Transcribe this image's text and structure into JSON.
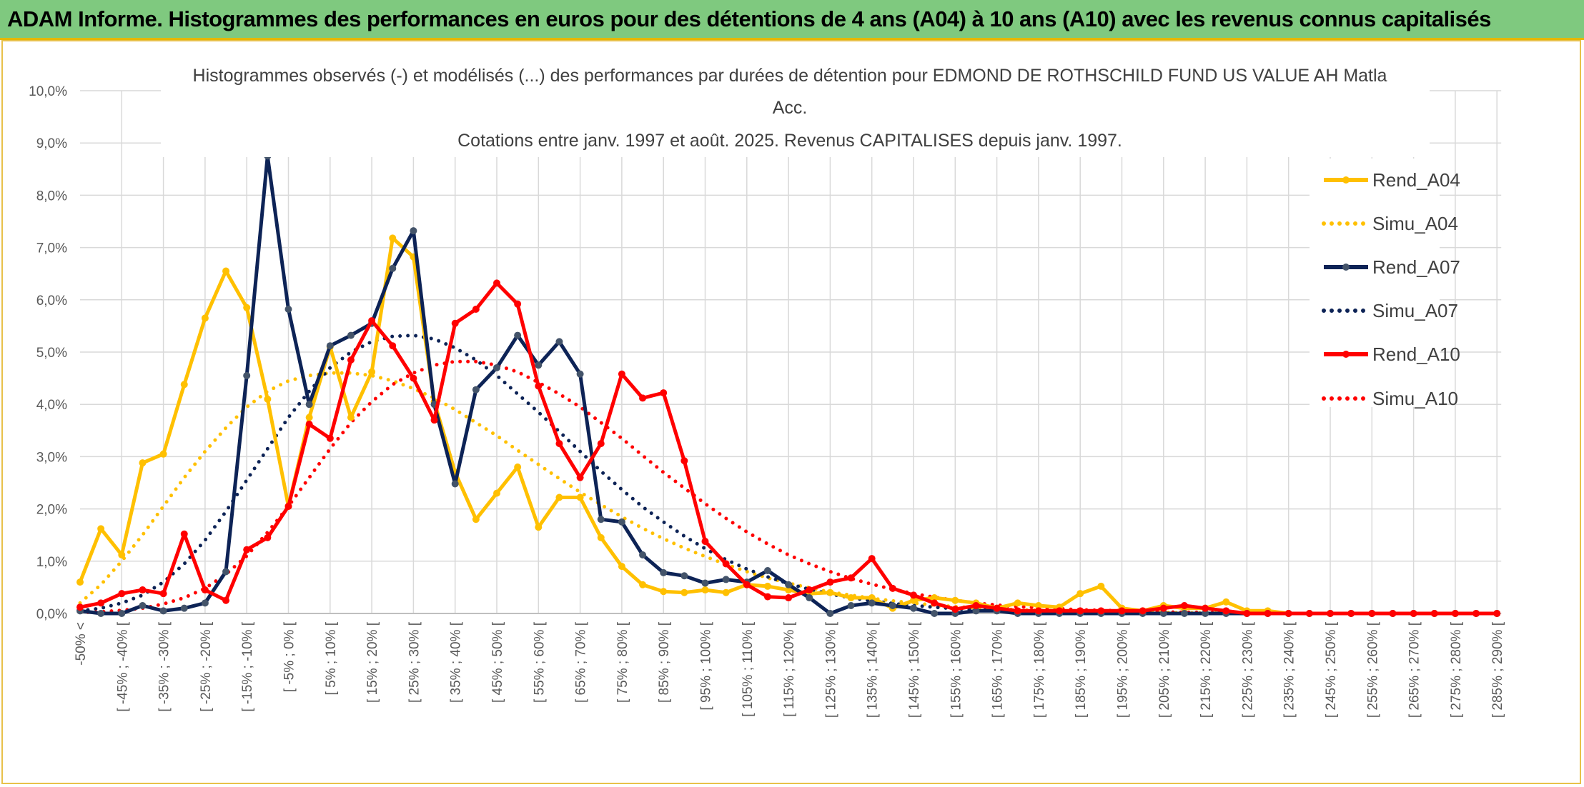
{
  "header": {
    "title": "ADAM Informe. Histogrammes des performances en euros pour des détentions de 4 ans (A04) à 10 ans (A10) avec les revenus connus capitalisés"
  },
  "colors": {
    "header_bg": "#7fc97f",
    "A04": "#ffc000",
    "A07": "#0d2356",
    "A10": "#ff0000"
  },
  "chart_data": {
    "type": "line",
    "title_lines": [
      "Histogrammes observés (-) et modélisés (...) des performances par durées de détention pour EDMOND DE ROTHSCHILD FUND US VALUE AH Matla",
      "Acc.",
      "Cotations entre janv. 1997 et août. 2025. Revenus CAPITALISES depuis janv. 1997."
    ],
    "ylim": [
      0,
      10
    ],
    "yticks": [
      "0,0%",
      "1,0%",
      "2,0%",
      "3,0%",
      "4,0%",
      "5,0%",
      "6,0%",
      "7,0%",
      "8,0%",
      "9,0%",
      "10,0%"
    ],
    "grid": true,
    "legend_position": "right",
    "n_points": 69,
    "x_tick_labels": [
      "-50% <",
      "[ -45% ; -40% [",
      "[ -35% ; -30% [",
      "[ -25% ; -20% [",
      "[ -15% ; -10% [",
      "[ -5% ; 0% [",
      "[ 5% ; 10% [",
      "[ 15% ; 20% [",
      "[ 25% ; 30% [",
      "[ 35% ; 40% [",
      "[ 45% ; 50% [",
      "[ 55% ; 60% [",
      "[ 65% ; 70% [",
      "[ 75% ; 80% [",
      "[ 85% ; 90% [",
      "[ 95% ; 100% [",
      "[ 105% ; 110% [",
      "[ 115% ; 120% [",
      "[ 125% ; 130% [",
      "[ 135% ; 140% [",
      "[ 145% ; 150% [",
      "[ 155% ; 160% [",
      "[ 165% ; 170% [",
      "[ 175% ; 180% [",
      "[ 185% ; 190% [",
      "[ 195% ; 200% [",
      "[ 205% ; 210% [",
      "[ 215% ; 220% [",
      "[ 225% ; 230% [",
      "[ 235% ; 240% [",
      "[ 245% ; 250% [",
      "[ 255% ; 260% [",
      "[ 265% ; 270% [",
      "[ 275% ; 280% [",
      "[ 285% ; 290% ["
    ],
    "series": [
      {
        "name": "Rend_A04",
        "style": "solid",
        "color": "#ffc000",
        "values": [
          0.6,
          1.62,
          1.12,
          2.88,
          3.05,
          4.38,
          5.65,
          6.55,
          5.85,
          4.1,
          2.05,
          3.75,
          5.1,
          3.75,
          4.62,
          7.18,
          6.82,
          4.05,
          2.7,
          1.8,
          2.3,
          2.8,
          1.65,
          2.22,
          2.22,
          1.45,
          0.9,
          0.55,
          0.42,
          0.4,
          0.45,
          0.4,
          0.55,
          0.52,
          0.45,
          0.38,
          0.4,
          0.3,
          0.3,
          0.1,
          0.25,
          0.3,
          0.25,
          0.2,
          0.1,
          0.2,
          0.15,
          0.12,
          0.38,
          0.52,
          0.1,
          0.05,
          0.15,
          0.1,
          0.1,
          0.22,
          0.05,
          0.05,
          0.0,
          0.0,
          0.0,
          0.0,
          0.0,
          0.0,
          0.0,
          0.0,
          0.0,
          0.0,
          0.0
        ]
      },
      {
        "name": "Simu_A04",
        "style": "dotted",
        "color": "#ffc000",
        "values": [
          0.2,
          0.55,
          1.0,
          1.5,
          2.05,
          2.6,
          3.1,
          3.55,
          3.95,
          4.25,
          4.45,
          4.55,
          4.6,
          4.6,
          4.55,
          4.45,
          4.3,
          4.12,
          3.9,
          3.65,
          3.4,
          3.12,
          2.85,
          2.58,
          2.32,
          2.08,
          1.85,
          1.63,
          1.43,
          1.25,
          1.09,
          0.94,
          0.8,
          0.68,
          0.58,
          0.49,
          0.41,
          0.35,
          0.29,
          0.24,
          0.2,
          0.16,
          0.13,
          0.11,
          0.09,
          0.07,
          0.06,
          0.05,
          0.04,
          0.03,
          0.03,
          0.02,
          0.02,
          0.01,
          0.01,
          0.01,
          0.01,
          0.0,
          0.0,
          0.0,
          0.0,
          0.0,
          0.0,
          0.0,
          0.0,
          0.0,
          0.0,
          0.0,
          0.0
        ]
      },
      {
        "name": "Rend_A07",
        "style": "solid",
        "color": "#0d2356",
        "values": [
          0.05,
          0.0,
          0.0,
          0.15,
          0.05,
          0.1,
          0.2,
          0.8,
          4.55,
          8.75,
          5.82,
          4.0,
          5.12,
          5.32,
          5.55,
          6.6,
          7.32,
          4.0,
          2.48,
          4.28,
          4.7,
          5.32,
          4.75,
          5.2,
          4.58,
          1.8,
          1.75,
          1.12,
          0.78,
          0.72,
          0.58,
          0.65,
          0.6,
          0.82,
          0.55,
          0.3,
          0.0,
          0.15,
          0.2,
          0.15,
          0.1,
          0.0,
          0.0,
          0.05,
          0.05,
          0.0,
          0.0,
          0.0,
          0.0,
          0.0,
          0.0,
          0.0,
          0.0,
          0.0,
          0.0,
          0.0,
          0.0,
          0.0,
          0.0,
          0.0,
          0.0,
          0.0,
          0.0,
          0.0,
          0.0,
          0.0,
          0.0,
          0.0,
          0.0
        ]
      },
      {
        "name": "Simu_A07",
        "style": "dotted",
        "color": "#0d2356",
        "values": [
          0.05,
          0.1,
          0.2,
          0.35,
          0.6,
          0.95,
          1.4,
          1.95,
          2.55,
          3.15,
          3.75,
          4.25,
          4.7,
          5.0,
          5.2,
          5.3,
          5.32,
          5.25,
          5.08,
          4.85,
          4.55,
          4.2,
          3.85,
          3.48,
          3.1,
          2.72,
          2.37,
          2.04,
          1.75,
          1.48,
          1.24,
          1.03,
          0.85,
          0.7,
          0.57,
          0.46,
          0.37,
          0.3,
          0.24,
          0.19,
          0.15,
          0.12,
          0.09,
          0.07,
          0.06,
          0.04,
          0.03,
          0.03,
          0.02,
          0.02,
          0.01,
          0.01,
          0.01,
          0.01,
          0.0,
          0.0,
          0.0,
          0.0,
          0.0,
          0.0,
          0.0,
          0.0,
          0.0,
          0.0,
          0.0,
          0.0,
          0.0,
          0.0,
          0.0
        ]
      },
      {
        "name": "Rend_A10",
        "style": "solid",
        "color": "#ff0000",
        "values": [
          0.12,
          0.2,
          0.38,
          0.45,
          0.38,
          1.52,
          0.45,
          0.25,
          1.22,
          1.45,
          2.05,
          3.62,
          3.35,
          4.85,
          5.6,
          5.12,
          4.5,
          3.7,
          5.55,
          5.82,
          6.32,
          5.92,
          4.35,
          3.25,
          2.6,
          3.25,
          4.58,
          4.12,
          4.22,
          2.92,
          1.38,
          0.95,
          0.55,
          0.32,
          0.3,
          0.45,
          0.6,
          0.68,
          1.05,
          0.48,
          0.35,
          0.2,
          0.08,
          0.15,
          0.1,
          0.05,
          0.05,
          0.05,
          0.05,
          0.05,
          0.05,
          0.05,
          0.1,
          0.15,
          0.1,
          0.05,
          0.0,
          0.0,
          0.0,
          0.0,
          0.0,
          0.0,
          0.0,
          0.0,
          0.0,
          0.0,
          0.0,
          0.0,
          0.0
        ]
      },
      {
        "name": "Simu_A10",
        "style": "dotted",
        "color": "#ff0000",
        "values": [
          0.02,
          0.03,
          0.06,
          0.1,
          0.18,
          0.3,
          0.48,
          0.75,
          1.1,
          1.55,
          2.05,
          2.6,
          3.15,
          3.65,
          4.05,
          4.38,
          4.6,
          4.75,
          4.82,
          4.82,
          4.75,
          4.62,
          4.42,
          4.2,
          3.95,
          3.65,
          3.35,
          3.02,
          2.7,
          2.4,
          2.1,
          1.82,
          1.56,
          1.33,
          1.12,
          0.95,
          0.8,
          0.67,
          0.56,
          0.46,
          0.38,
          0.31,
          0.25,
          0.2,
          0.16,
          0.13,
          0.11,
          0.09,
          0.07,
          0.06,
          0.05,
          0.04,
          0.03,
          0.02,
          0.02,
          0.01,
          0.01,
          0.01,
          0.0,
          0.0,
          0.0,
          0.0,
          0.0,
          0.0,
          0.0,
          0.0,
          0.0,
          0.0,
          0.0
        ]
      }
    ]
  }
}
